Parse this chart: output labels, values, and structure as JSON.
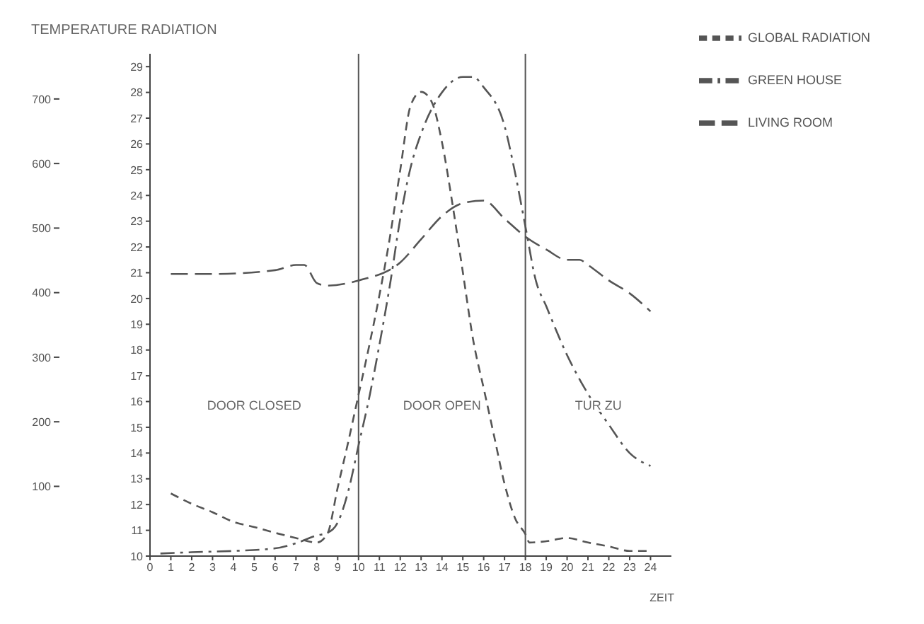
{
  "chart_data": {
    "type": "line",
    "ylabel": "TEMPERATURE RADIATION",
    "xlabel": "ZEIT",
    "xlim": [
      0,
      25
    ],
    "xticks": [
      0,
      1,
      2,
      3,
      4,
      5,
      6,
      7,
      8,
      9,
      10,
      11,
      12,
      13,
      14,
      15,
      16,
      17,
      18,
      19,
      20,
      21,
      22,
      23,
      24
    ],
    "ylim": [
      10,
      29.5
    ],
    "yticks": [
      10,
      11,
      12,
      13,
      14,
      15,
      16,
      17,
      18,
      19,
      20,
      21,
      22,
      23,
      24,
      25,
      26,
      27,
      28,
      29
    ],
    "y2lim": [
      -8,
      770
    ],
    "y2ticks": [
      100,
      200,
      300,
      400,
      500,
      600,
      700
    ],
    "legend": "top right",
    "marker": "none",
    "line_style": "dashed",
    "series": [
      {
        "name": "LIVING ROOM",
        "color": "#555555",
        "x": [
          1,
          3,
          6,
          7,
          7.4,
          8,
          8.5,
          10,
          12,
          13,
          14,
          15,
          16,
          17,
          18,
          19,
          20,
          20.6,
          21,
          22,
          23,
          24
        ],
        "values": [
          20.95,
          20.95,
          21.1,
          21.3,
          21.3,
          20.6,
          20.5,
          20.7,
          21.4,
          22.3,
          23.2,
          23.7,
          23.8,
          23.1,
          22.4,
          21.9,
          21.5,
          21.5,
          21.3,
          20.7,
          20.2,
          19.5
        ]
      },
      {
        "name": "GREEN HOUSE",
        "color": "#555555",
        "x": [
          0.5,
          2,
          4,
          6,
          7,
          8,
          8.5,
          9,
          9.5,
          10,
          10.5,
          11,
          11.5,
          12,
          12.5,
          13,
          14,
          15,
          15.5,
          16,
          17,
          17.5,
          18,
          18.5,
          19,
          20,
          21,
          22,
          23,
          24
        ],
        "values": [
          10.1,
          10.15,
          10.2,
          10.3,
          10.5,
          10.8,
          10.9,
          11.3,
          12.5,
          14.3,
          16.1,
          18.2,
          20.5,
          23.1,
          25.1,
          26.4,
          28,
          28.6,
          28.6,
          28.2,
          26.7,
          24.9,
          22.8,
          20.7,
          19.7,
          17.8,
          16.3,
          15.1,
          14,
          13.5
        ]
      },
      {
        "name": "GLOBAL RADIATION",
        "color": "#555555",
        "axis": "y2",
        "x": [
          1,
          2,
          3,
          4,
          5,
          6,
          7,
          8,
          8.5,
          9,
          9.5,
          10,
          10.5,
          11,
          11.5,
          12,
          12.5,
          13,
          13.5,
          14,
          14.5,
          15,
          15.5,
          16,
          16.5,
          17,
          17.5,
          18,
          18.2,
          19,
          20,
          21,
          22,
          23,
          24
        ],
        "values": [
          89,
          73,
          60,
          45,
          37,
          28,
          20,
          13,
          26,
          98,
          168,
          242,
          316,
          396,
          485,
          590,
          690,
          711,
          696,
          633,
          538,
          432,
          326,
          252,
          178,
          104,
          51,
          26,
          13,
          15,
          20,
          13,
          7,
          0,
          0
        ]
      }
    ],
    "ref_lines": [
      {
        "axis": "x",
        "value": 10
      },
      {
        "axis": "x",
        "value": 18
      }
    ],
    "annotations": [
      "DOOR CLOSED",
      "DOOR OPEN",
      "TUR ZU"
    ]
  }
}
